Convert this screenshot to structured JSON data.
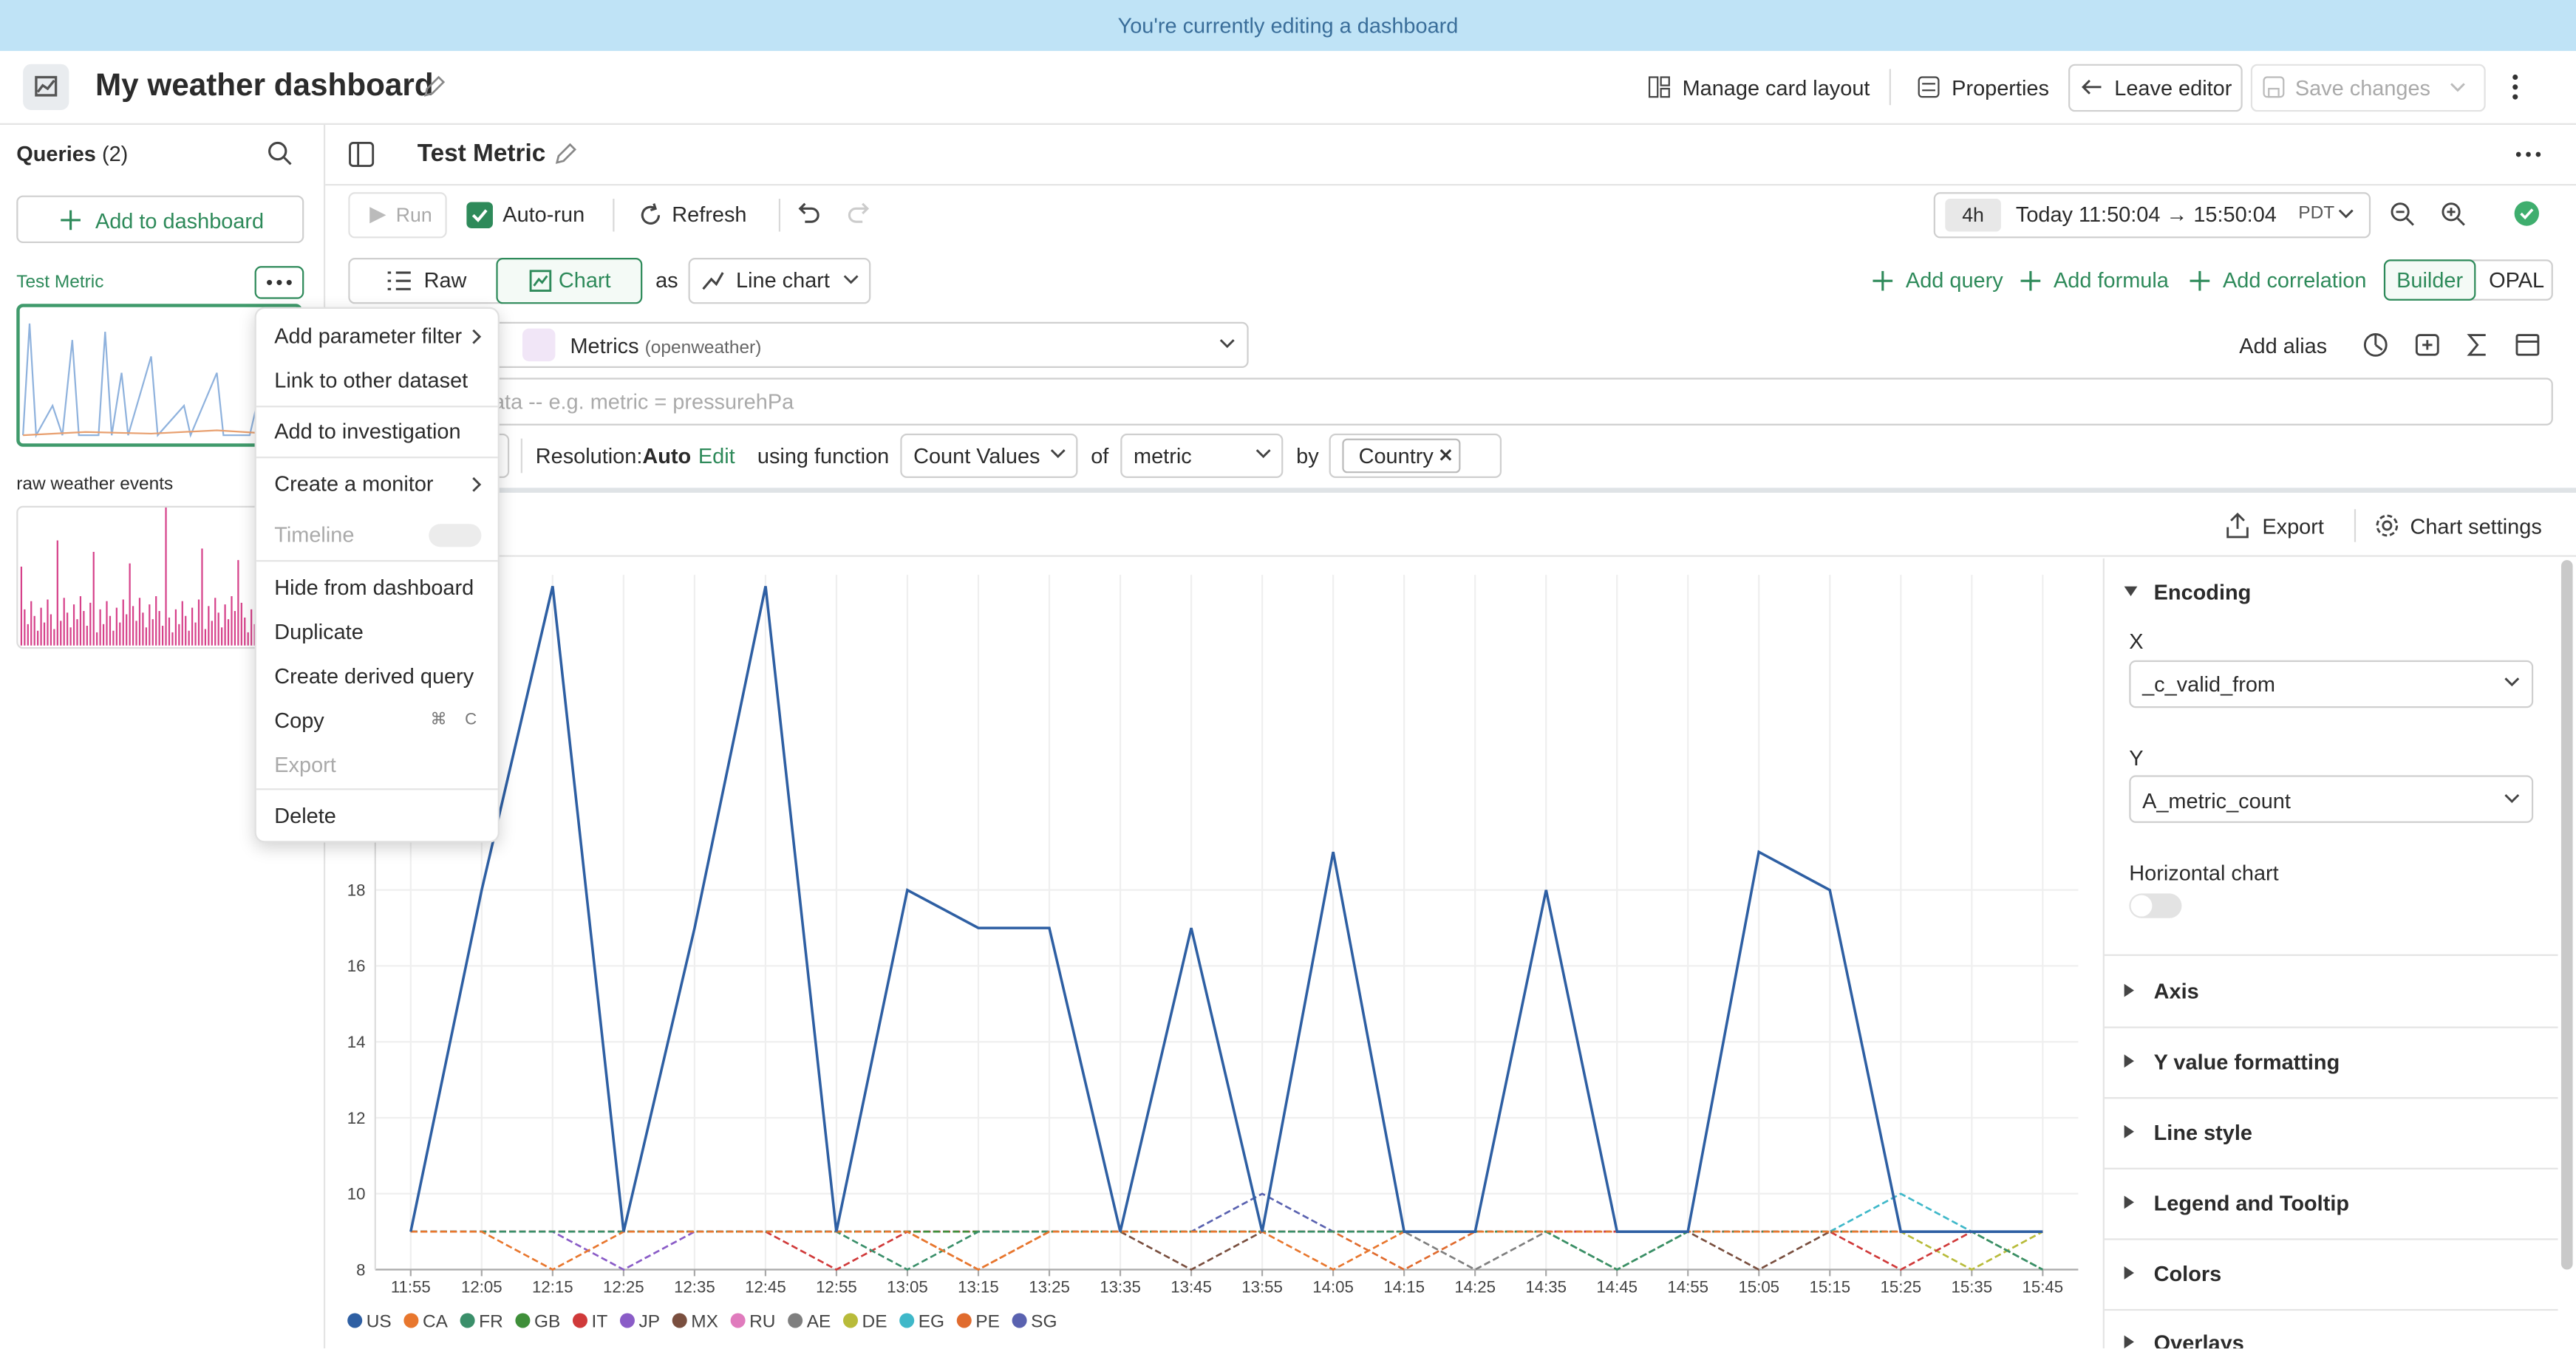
{
  "banner": "You're currently editing a dashboard",
  "header": {
    "title": "My weather dashboard",
    "actions": [
      "Manage card layout",
      "Properties",
      "Leave editor",
      "Save changes"
    ]
  },
  "sidebar": {
    "title": "Queries",
    "count": "(2)",
    "add_button": "Add to dashboard",
    "queries": [
      "Test Metric",
      "raw weather events"
    ]
  },
  "editor": {
    "title": "Test Metric",
    "toolbar": {
      "run": "Run",
      "auto_run": "Auto-run",
      "refresh": "Refresh",
      "range": "4h",
      "time": "Today 11:50:04 → 15:50:04",
      "timezone": "PDT"
    },
    "view": {
      "raw": "Raw",
      "chart": "Chart",
      "as": "as",
      "chart_type": "Line chart"
    },
    "query_actions": [
      "Add query",
      "Add formula",
      "Add correlation"
    ],
    "modes": [
      "Builder",
      "OPAL"
    ],
    "dataset": "Metrics",
    "dataset_sub": "(openweather)",
    "add_alias": "Add alias",
    "filter_placeholder": "ata -- e.g. metric = pressurehPa",
    "resolution_label": "Resolution:",
    "resolution": "Auto",
    "edit": "Edit",
    "using_function": "using function",
    "function": "Count Values",
    "of": "of",
    "metric": "metric",
    "by": "by",
    "group": "Country",
    "export": "Export",
    "chart_settings": "Chart settings"
  },
  "menu": {
    "items": [
      "Add parameter filter",
      "Link to other dataset",
      "Add to investigation",
      "Create a monitor",
      "Timeline",
      "Hide from dashboard",
      "Duplicate",
      "Create derived query",
      "Copy",
      "Export",
      "Delete"
    ],
    "copy_shortcut": [
      "⌘",
      "C"
    ]
  },
  "settings": {
    "encoding": "Encoding",
    "x_label": "X",
    "x_value": "_c_valid_from",
    "y_label": "Y",
    "y_value": "A_metric_count",
    "horizontal": "Horizontal chart",
    "sections": [
      "Axis",
      "Y value formatting",
      "Line style",
      "Legend and Tooltip",
      "Colors",
      "Overlays"
    ]
  },
  "chart_data": {
    "type": "line",
    "categories": [
      "11:55",
      "12:05",
      "12:15",
      "12:25",
      "12:35",
      "12:45",
      "12:55",
      "13:05",
      "13:15",
      "13:25",
      "13:35",
      "13:45",
      "13:55",
      "14:05",
      "14:15",
      "14:25",
      "14:35",
      "14:45",
      "14:55",
      "15:05",
      "15:15",
      "15:25",
      "15:35",
      "15:45"
    ],
    "ylim": [
      8,
      26.3
    ],
    "yticks": [
      8,
      10,
      12,
      14,
      16,
      18
    ],
    "grid": true,
    "series": [
      {
        "name": "US",
        "color": "#2e5fa3",
        "style": "solid",
        "values": [
          9,
          18,
          26,
          9,
          17,
          26,
          9,
          18,
          17,
          17,
          9,
          17,
          9,
          19,
          9,
          9,
          18,
          9,
          9,
          19,
          18,
          9,
          9,
          9
        ]
      },
      {
        "name": "CA",
        "color": "#e8772e",
        "style": "dashed",
        "values": [
          9,
          9,
          8,
          9,
          9,
          9,
          9,
          9,
          8,
          9,
          9,
          9,
          9,
          8,
          9,
          9,
          9,
          9,
          9,
          9,
          9,
          9,
          9,
          9
        ]
      },
      {
        "name": "FR",
        "color": "#3a8f6a",
        "style": "dashed",
        "values": [
          9,
          9,
          9,
          9,
          9,
          9,
          9,
          8,
          9,
          9,
          9,
          9,
          9,
          9,
          9,
          9,
          9,
          8,
          9,
          9,
          9,
          9,
          9,
          8
        ]
      },
      {
        "name": "GB",
        "color": "#3f8f3a",
        "style": "dashed",
        "values": [
          9,
          9,
          9,
          9,
          9,
          9,
          9,
          9,
          9,
          9,
          9,
          9,
          9,
          9,
          9,
          9,
          9,
          8,
          9,
          9,
          9,
          9,
          9,
          8
        ]
      },
      {
        "name": "IT",
        "color": "#d03a3a",
        "style": "dashed",
        "values": [
          9,
          9,
          9,
          9,
          9,
          9,
          8,
          9,
          9,
          9,
          9,
          9,
          9,
          9,
          9,
          9,
          9,
          9,
          9,
          9,
          9,
          8,
          9,
          9
        ]
      },
      {
        "name": "JP",
        "color": "#8a5cc7",
        "style": "dashed",
        "values": [
          9,
          9,
          9,
          8,
          9,
          9,
          9,
          9,
          9,
          9,
          9,
          9,
          9,
          9,
          9,
          9,
          9,
          9,
          9,
          9,
          9,
          9,
          9,
          9
        ]
      },
      {
        "name": "MX",
        "color": "#7a4f3f",
        "style": "dashed",
        "values": [
          9,
          9,
          9,
          9,
          9,
          9,
          9,
          9,
          9,
          9,
          9,
          8,
          9,
          9,
          9,
          9,
          9,
          9,
          9,
          8,
          9,
          9,
          9,
          9
        ]
      },
      {
        "name": "RU",
        "color": "#e07bbd",
        "style": "dashed",
        "values": [
          9,
          9,
          9,
          9,
          9,
          9,
          9,
          9,
          9,
          9,
          9,
          9,
          9,
          9,
          9,
          9,
          9,
          9,
          9,
          9,
          9,
          9,
          9,
          9
        ]
      },
      {
        "name": "AE",
        "color": "#7f7f7f",
        "style": "dashed",
        "values": [
          9,
          9,
          9,
          9,
          9,
          9,
          9,
          9,
          9,
          9,
          9,
          9,
          9,
          9,
          9,
          8,
          9,
          9,
          9,
          9,
          9,
          9,
          9,
          9
        ]
      },
      {
        "name": "DE",
        "color": "#b8bb3a",
        "style": "dashed",
        "values": [
          9,
          9,
          9,
          9,
          9,
          9,
          9,
          9,
          9,
          9,
          9,
          9,
          9,
          9,
          9,
          9,
          9,
          9,
          9,
          9,
          9,
          9,
          8,
          9
        ]
      },
      {
        "name": "EG",
        "color": "#3fb8c9",
        "style": "dashed",
        "values": [
          9,
          9,
          9,
          9,
          9,
          9,
          9,
          9,
          9,
          9,
          9,
          9,
          9,
          9,
          9,
          9,
          9,
          9,
          9,
          9,
          9,
          10,
          9,
          9
        ]
      },
      {
        "name": "PE",
        "color": "#e06b2e",
        "style": "dashed",
        "values": [
          9,
          9,
          9,
          9,
          9,
          9,
          9,
          9,
          8,
          9,
          9,
          9,
          9,
          9,
          8,
          9,
          9,
          9,
          9,
          9,
          9,
          9,
          9,
          9
        ]
      },
      {
        "name": "SG",
        "color": "#5a62b0",
        "style": "dashed",
        "values": [
          9,
          9,
          9,
          9,
          9,
          9,
          9,
          9,
          9,
          9,
          9,
          9,
          10,
          9,
          9,
          9,
          9,
          9,
          9,
          9,
          9,
          9,
          9,
          9
        ]
      }
    ]
  }
}
